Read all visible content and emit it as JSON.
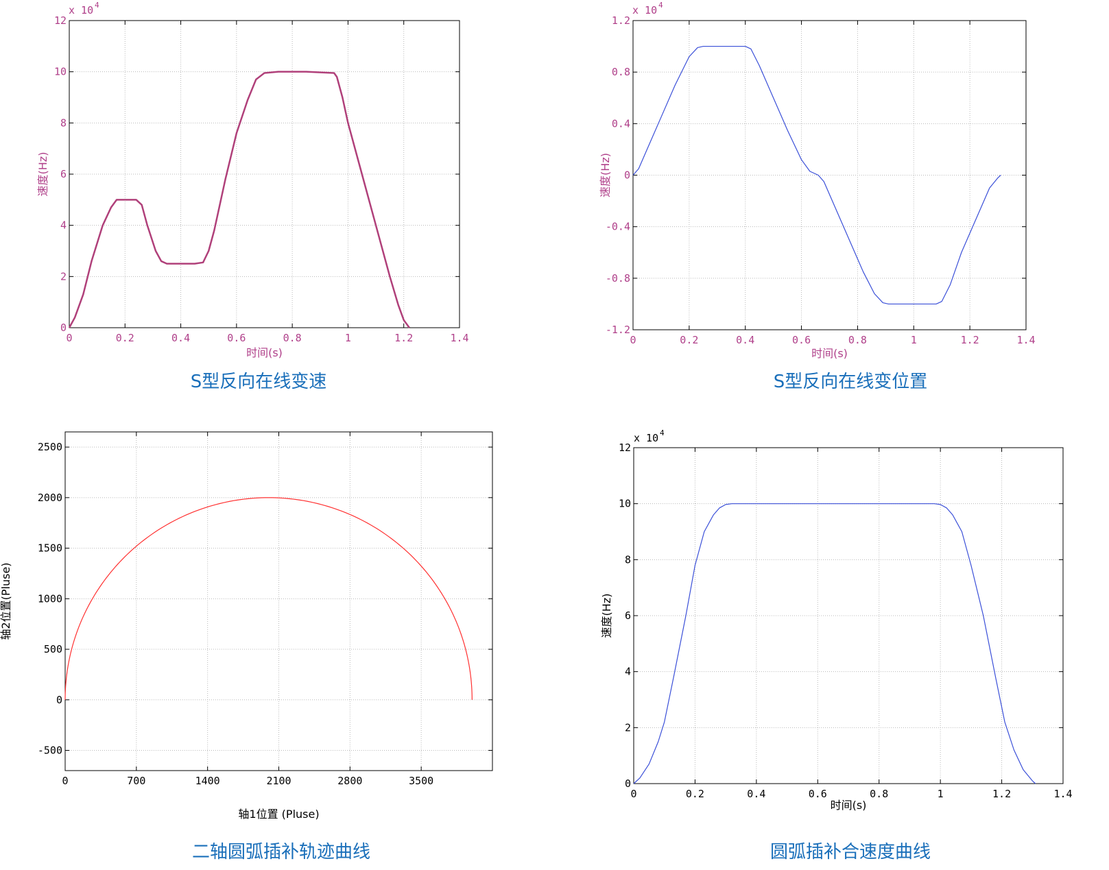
{
  "chart_data": [
    {
      "type": "line",
      "caption": "S型反向在线变速",
      "xlabel": "时间(s)",
      "ylabel": "速度(Hz)",
      "multiplier": "x 10",
      "multiplier_exp": "4",
      "xlim": [
        0,
        1.4
      ],
      "ylim": [
        0,
        12
      ],
      "x_ticks": [
        0,
        0.2,
        0.4,
        0.6,
        0.8,
        1,
        1.2,
        1.4
      ],
      "x_tick_labels": [
        "0",
        "0.2",
        "0.4",
        "0.6",
        "0.8",
        "1",
        "1.2",
        "1.4"
      ],
      "y_ticks": [
        0,
        2,
        4,
        6,
        8,
        10,
        12
      ],
      "y_tick_labels": [
        "0",
        "2",
        "4",
        "6",
        "8",
        "10",
        "12"
      ],
      "grid": true,
      "text_color": "#b0408a",
      "series": [
        {
          "color": "#b0407a",
          "x": [
            0,
            0.02,
            0.05,
            0.08,
            0.12,
            0.15,
            0.17,
            0.2,
            0.24,
            0.26,
            0.28,
            0.31,
            0.33,
            0.35,
            0.4,
            0.45,
            0.48,
            0.5,
            0.52,
            0.56,
            0.6,
            0.64,
            0.67,
            0.7,
            0.75,
            0.85,
            0.95,
            0.96,
            0.98,
            1.0,
            1.05,
            1.1,
            1.15,
            1.18,
            1.2,
            1.22
          ],
          "y": [
            0,
            0.4,
            1.3,
            2.6,
            4.0,
            4.7,
            5.0,
            5.0,
            5.0,
            4.8,
            4.0,
            3.0,
            2.6,
            2.5,
            2.5,
            2.5,
            2.55,
            3.0,
            3.8,
            5.8,
            7.6,
            8.9,
            9.7,
            9.95,
            10.0,
            10.0,
            9.95,
            9.8,
            9.0,
            8.0,
            6.0,
            4.0,
            2.0,
            0.9,
            0.3,
            0
          ]
        }
      ]
    },
    {
      "type": "line",
      "caption": "S型反向在线变位置",
      "xlabel": "时间(s)",
      "ylabel": "速度(Hz)",
      "multiplier": "x 10",
      "multiplier_exp": "4",
      "xlim": [
        0,
        1.4
      ],
      "ylim": [
        -1.2,
        1.2
      ],
      "x_ticks": [
        0,
        0.2,
        0.4,
        0.6,
        0.8,
        1,
        1.2,
        1.4
      ],
      "x_tick_labels": [
        "0",
        "0.2",
        "0.4",
        "0.6",
        "0.8",
        "1",
        "1.2",
        "1.4"
      ],
      "y_ticks": [
        -1.2,
        -0.8,
        -0.4,
        0,
        0.4,
        0.8,
        1.2
      ],
      "y_tick_labels": [
        "-1.2",
        "-0.8",
        "-0.4",
        "0",
        "0.4",
        "0.8",
        "1.2"
      ],
      "grid": true,
      "text_color": "#b0408a",
      "series": [
        {
          "color": "#3a4fd8",
          "x": [
            0,
            0.02,
            0.05,
            0.1,
            0.15,
            0.2,
            0.23,
            0.25,
            0.4,
            0.42,
            0.45,
            0.5,
            0.55,
            0.6,
            0.63,
            0.66,
            0.68,
            0.72,
            0.77,
            0.82,
            0.86,
            0.89,
            0.91,
            1.08,
            1.1,
            1.13,
            1.17,
            1.22,
            1.27,
            1.3,
            1.31
          ],
          "y": [
            0,
            0.05,
            0.2,
            0.45,
            0.7,
            0.92,
            0.99,
            1.0,
            1.0,
            0.98,
            0.85,
            0.6,
            0.35,
            0.12,
            0.03,
            0,
            -0.05,
            -0.25,
            -0.5,
            -0.75,
            -0.92,
            -0.99,
            -1.0,
            -1.0,
            -0.98,
            -0.85,
            -0.6,
            -0.35,
            -0.1,
            -0.02,
            0
          ]
        }
      ]
    },
    {
      "type": "line",
      "caption": "二轴圆弧插补轨迹曲线",
      "xlabel": "轴1位置 (Pluse)",
      "ylabel": "轴2位置(Pluse)",
      "xlim": [
        0,
        4200
      ],
      "ylim": [
        -700,
        2650
      ],
      "x_ticks": [
        0,
        700,
        1400,
        2100,
        2800,
        3500
      ],
      "x_tick_labels": [
        "0",
        "700",
        "1400",
        "2100",
        "2800",
        "3500"
      ],
      "y_ticks": [
        -500,
        0,
        500,
        1000,
        1500,
        2000,
        2500
      ],
      "y_tick_labels": [
        "-500",
        "0",
        "500",
        "1000",
        "1500",
        "2000",
        "2500"
      ],
      "grid": true,
      "text_color": "#000000",
      "series": [
        {
          "color": "#ff3030",
          "shape": "semicircle",
          "center_x": 2000,
          "center_y": 0,
          "radius": 2000
        }
      ]
    },
    {
      "type": "line",
      "caption": "圆弧插补合速度曲线",
      "xlabel": "时间(s)",
      "ylabel": "速度(Hz)",
      "multiplier": "x 10",
      "multiplier_exp": "4",
      "xlim": [
        0,
        1.4
      ],
      "ylim": [
        0,
        12
      ],
      "x_ticks": [
        0,
        0.2,
        0.4,
        0.6,
        0.8,
        1,
        1.2,
        1.4
      ],
      "x_tick_labels": [
        "0",
        "0.2",
        "0.4",
        "0.6",
        "0.8",
        "1",
        "1.2",
        "1.4"
      ],
      "y_ticks": [
        0,
        2,
        4,
        6,
        8,
        10,
        12
      ],
      "y_tick_labels": [
        "0",
        "2",
        "4",
        "6",
        "8",
        "10",
        "12"
      ],
      "grid": true,
      "text_color": "#000000",
      "series": [
        {
          "color": "#3a4fd8",
          "x": [
            0,
            0.02,
            0.05,
            0.08,
            0.1,
            0.13,
            0.17,
            0.2,
            0.23,
            0.26,
            0.28,
            0.3,
            0.32,
            0.35,
            0.5,
            0.7,
            0.98,
            1.0,
            1.02,
            1.04,
            1.07,
            1.1,
            1.14,
            1.18,
            1.21,
            1.24,
            1.27,
            1.3,
            1.31
          ],
          "y": [
            0,
            0.2,
            0.7,
            1.5,
            2.2,
            3.8,
            6.0,
            7.8,
            9.0,
            9.6,
            9.85,
            9.97,
            10.0,
            10.0,
            10.0,
            10.0,
            10.0,
            9.97,
            9.85,
            9.6,
            9.0,
            7.8,
            6.0,
            3.8,
            2.2,
            1.2,
            0.5,
            0.1,
            0
          ]
        }
      ]
    }
  ]
}
